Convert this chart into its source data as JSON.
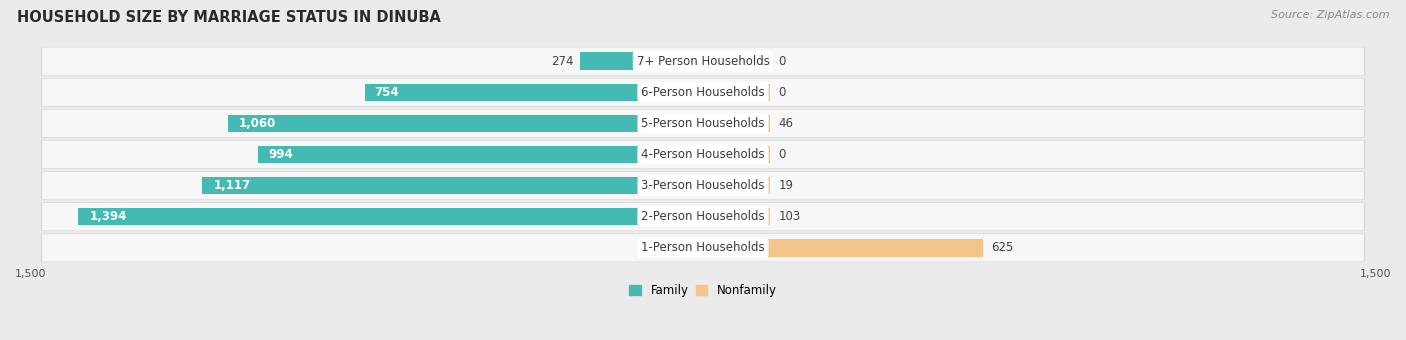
{
  "title": "HOUSEHOLD SIZE BY MARRIAGE STATUS IN DINUBA",
  "source": "Source: ZipAtlas.com",
  "categories": [
    "7+ Person Households",
    "6-Person Households",
    "5-Person Households",
    "4-Person Households",
    "3-Person Households",
    "2-Person Households",
    "1-Person Households"
  ],
  "family_values": [
    274,
    754,
    1060,
    994,
    1117,
    1394,
    0
  ],
  "nonfamily_values": [
    0,
    0,
    46,
    0,
    19,
    103,
    625
  ],
  "family_labels": [
    "274",
    "754",
    "1,060",
    "994",
    "1,117",
    "1,394",
    ""
  ],
  "nonfamily_labels": [
    "0",
    "0",
    "46",
    "0",
    "19",
    "103",
    "625"
  ],
  "family_color": "#45bab3",
  "nonfamily_color": "#f5c48a",
  "background_color": "#ebebeb",
  "row_bg_color": "#f7f7f7",
  "row_shadow_color": "#d8d8d8",
  "axis_limit": 1500,
  "nonfamily_stub": 150,
  "legend_family": "Family",
  "legend_nonfamily": "Nonfamily",
  "title_fontsize": 10.5,
  "label_fontsize": 8.5,
  "category_fontsize": 8.5,
  "source_fontsize": 8
}
